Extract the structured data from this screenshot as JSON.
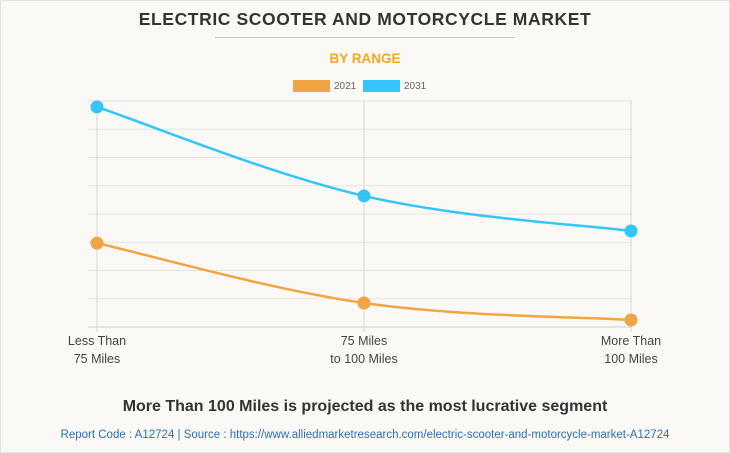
{
  "header": {
    "title": "ELECTRIC SCOOTER AND MOTORCYCLE MARKET",
    "subtitle": "BY RANGE"
  },
  "footer": {
    "insight": "More Than 100 Miles is projected as the most lucrative segment",
    "source": "Report Code : A12724  |  Source : https://www.alliedmarketresearch.com/electric-scooter-and-motorcycle-market-A12724"
  },
  "colors": {
    "series_2021": "#f2a444",
    "series_2031": "#33c5fb",
    "title": "#333333",
    "subtitle": "#f5a623",
    "source_link": "#2f6fb3"
  },
  "chart_data": {
    "type": "line",
    "title": "ELECTRIC SCOOTER AND MOTORCYCLE MARKET",
    "subtitle": "BY RANGE",
    "xlabel": "",
    "ylabel": "",
    "categories": [
      [
        "Less Than",
        "75 Miles"
      ],
      [
        "75 Miles",
        "to 100 Miles"
      ],
      [
        "More Than",
        "100 Miles"
      ]
    ],
    "series": [
      {
        "name": "2021",
        "color": "#f2a444",
        "values": [
          2.97,
          0.85,
          0.25
        ]
      },
      {
        "name": "2031",
        "color": "#33c5fb",
        "values": [
          7.79,
          4.64,
          3.4
        ]
      }
    ],
    "ylim": [
      0,
      8
    ],
    "y_gridlines": 8,
    "y_tick_labels_visible": false,
    "grid": true,
    "smooth": true,
    "legend": "top-center"
  }
}
